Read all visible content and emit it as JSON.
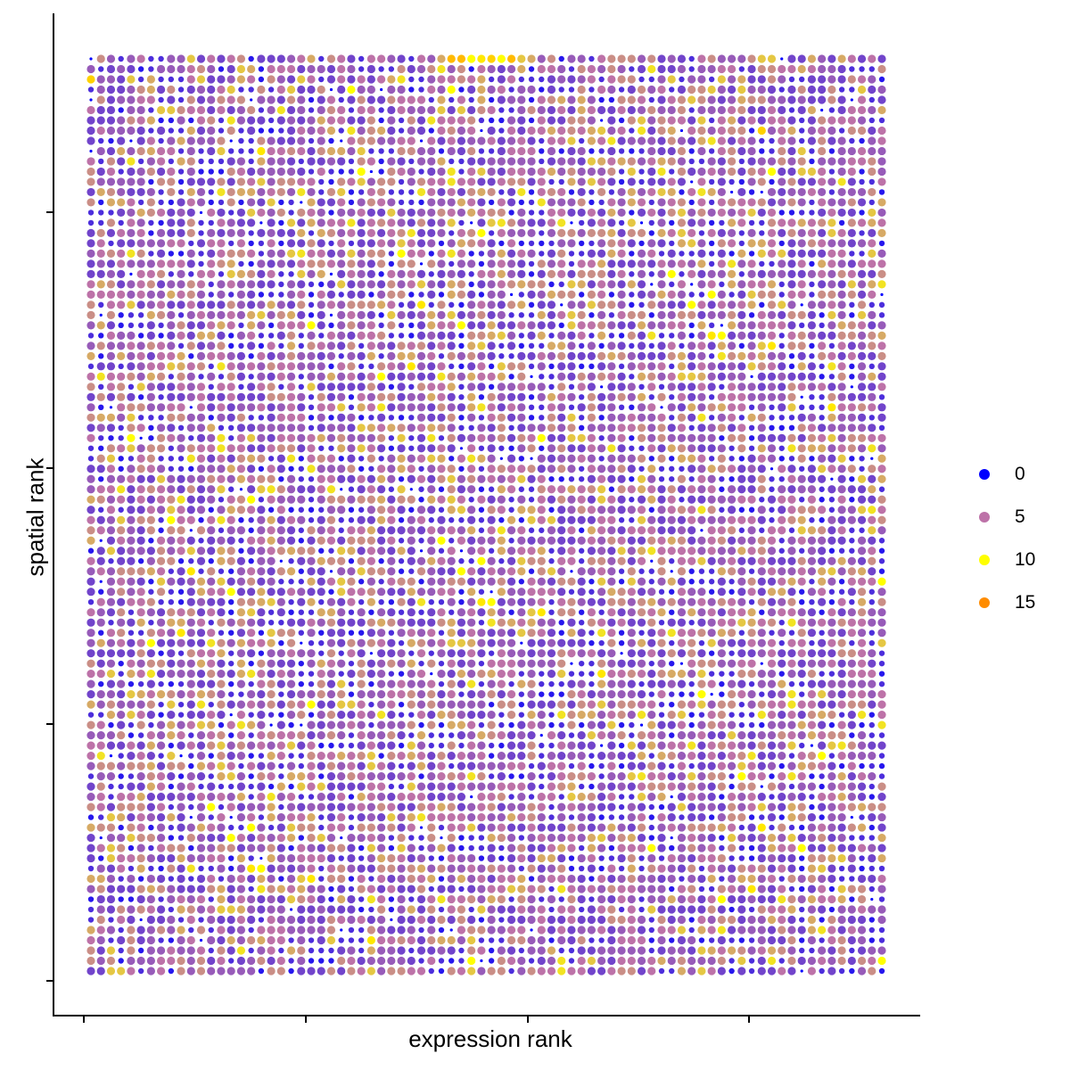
{
  "chart_data": {
    "type": "scatter",
    "title": "",
    "xlabel": "expression rank",
    "ylabel": "spatial rank",
    "x_tick_labels": [
      "",
      "",
      "",
      ""
    ],
    "y_tick_labels": [
      "",
      "",
      "",
      ""
    ],
    "grid": false,
    "grid_columns": 80,
    "grid_rows": 90,
    "legend_placement": "right",
    "color_scale": {
      "type": "continuous",
      "stops": [
        {
          "value": 0,
          "color": "#0000FF"
        },
        {
          "value": 5,
          "color": "#BD72A8"
        },
        {
          "value": 10,
          "color": "#FFFF00"
        },
        {
          "value": 15,
          "color": "#FF8C00"
        }
      ]
    },
    "legend": [
      {
        "label": "0",
        "color": "#0000FF"
      },
      {
        "label": "5",
        "color": "#BD72A8"
      },
      {
        "label": "10",
        "color": "#FFFF00"
      },
      {
        "label": "15",
        "color": "#FF8C00"
      }
    ]
  }
}
